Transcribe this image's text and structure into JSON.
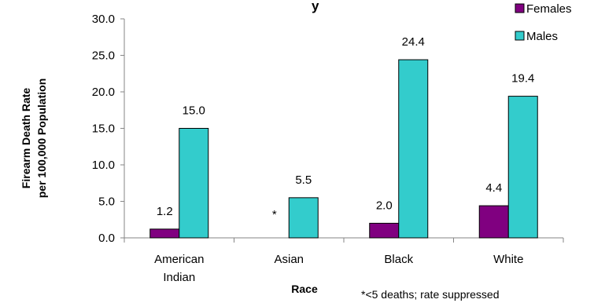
{
  "chart_data": {
    "type": "bar",
    "title": "",
    "categories": [
      [
        "American",
        "Indian"
      ],
      [
        "Asian"
      ],
      [
        "Black"
      ],
      [
        "White"
      ]
    ],
    "series": [
      {
        "name": "Females",
        "color": "#800080",
        "values": [
          1.2,
          null,
          2.0,
          4.4
        ],
        "labels": [
          "1.2",
          "*",
          "2.0",
          "4.4"
        ]
      },
      {
        "name": "Males",
        "color": "#33CCCC",
        "values": [
          15.0,
          5.5,
          24.4,
          19.4
        ],
        "labels": [
          "15.0",
          "5.5",
          "24.4",
          "19.4"
        ]
      }
    ],
    "xlabel": "Race",
    "ylabel": [
      "Firearm Death Rate",
      "per 100,000  Population"
    ],
    "ylim": [
      0,
      30
    ],
    "yticks": [
      "0.0",
      "5.0",
      "10.0",
      "15.0",
      "20.0",
      "25.0",
      "30.0"
    ],
    "legend_position": "top-right",
    "grid": false,
    "footnote": "*<5 deaths; rate suppressed",
    "title_fragment": "y"
  }
}
